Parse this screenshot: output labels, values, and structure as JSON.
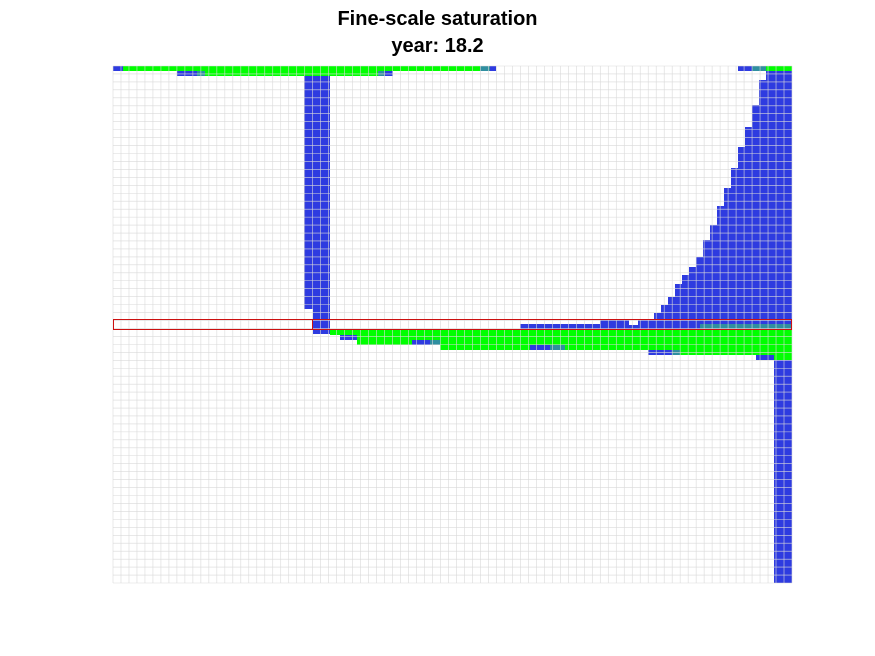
{
  "chart_data": {
    "type": "heatmap",
    "title": "Fine-scale saturation",
    "subtitle": "year: 18.2",
    "grid": true,
    "colors": {
      "water": "#2e3be0",
      "mixed": "#2f8fa0",
      "co2": "#00ff00",
      "empty": "#ffffff",
      "gridline": "#d9d9d9",
      "coarse_outline": "#cc1111"
    }
  }
}
